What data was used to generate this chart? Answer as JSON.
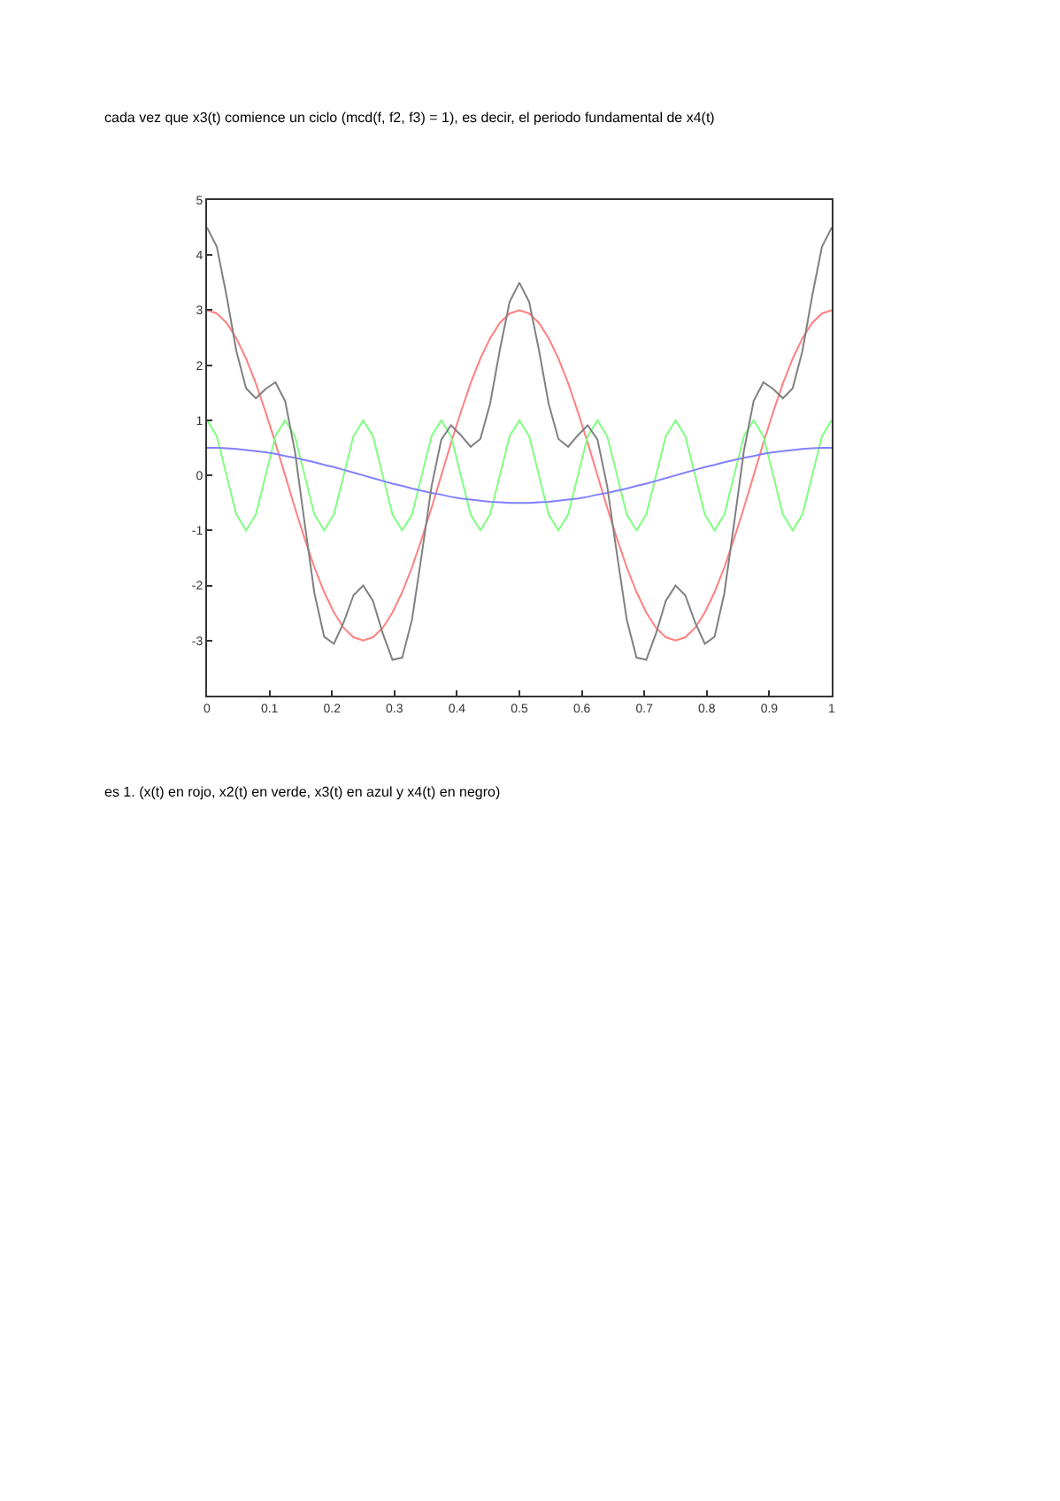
{
  "chart_data": {
    "type": "line",
    "title": "cada vez que x3(t) comience un ciclo (mcd(f, f2, f3) = 1), es decir, el periodo fundamental de x4(t)",
    "annotations": [
      "es 1. (x(t) en rojo, x2(t) en verde, x3(t) en azul y x4(t) en negro)"
    ],
    "x": [
      0,
      0.015625,
      0.03125,
      0.046875,
      0.0625,
      0.078125,
      0.09375,
      0.109375,
      0.125,
      0.140625,
      0.15625,
      0.171875,
      0.1875,
      0.203125,
      0.21875,
      0.234375,
      0.25,
      0.265625,
      0.28125,
      0.296875,
      0.3125,
      0.328125,
      0.34375,
      0.359375,
      0.375,
      0.390625,
      0.40625,
      0.421875,
      0.4375,
      0.453125,
      0.46875,
      0.484375,
      0.5,
      0.515625,
      0.53125,
      0.546875,
      0.5625,
      0.578125,
      0.59375,
      0.609375,
      0.625,
      0.640625,
      0.65625,
      0.671875,
      0.6875,
      0.703125,
      0.71875,
      0.734375,
      0.75,
      0.765625,
      0.78125,
      0.796875,
      0.8125,
      0.828125,
      0.84375,
      0.859375,
      0.875,
      0.890625,
      0.90625,
      0.921875,
      0.9375,
      0.953125,
      0.96875,
      0.984375,
      1
    ],
    "series": [
      {
        "color": "#ff8080",
        "values": [
          3,
          2.94,
          2.77,
          2.49,
          2.12,
          1.67,
          1.15,
          0.59,
          0,
          -0.59,
          -1.15,
          -1.67,
          -2.12,
          -2.49,
          -2.77,
          -2.94,
          -3,
          -2.94,
          -2.77,
          -2.49,
          -2.12,
          -1.67,
          -1.15,
          -0.59,
          0,
          0.59,
          1.15,
          1.67,
          2.12,
          2.49,
          2.77,
          2.94,
          3,
          2.94,
          2.77,
          2.49,
          2.12,
          1.67,
          1.15,
          0.59,
          0,
          -0.59,
          -1.15,
          -1.67,
          -2.12,
          -2.49,
          -2.77,
          -2.94,
          -3,
          -2.94,
          -2.77,
          -2.49,
          -2.12,
          -1.67,
          -1.15,
          -0.59,
          0,
          0.59,
          1.15,
          1.67,
          2.12,
          2.49,
          2.77,
          2.94,
          3
        ]
      },
      {
        "color": "#80ff80",
        "values": [
          1,
          0.71,
          0,
          -0.71,
          -1,
          -0.71,
          0,
          0.71,
          1,
          0.71,
          0,
          -0.71,
          -1,
          -0.71,
          0,
          0.71,
          1,
          0.71,
          0,
          -0.71,
          -1,
          -0.71,
          0,
          0.71,
          1,
          0.71,
          0,
          -0.71,
          -1,
          -0.71,
          0,
          0.71,
          1,
          0.71,
          0,
          -0.71,
          -1,
          -0.71,
          0,
          0.71,
          1,
          0.71,
          0,
          -0.71,
          -1,
          -0.71,
          0,
          0.71,
          1,
          0.71,
          0,
          -0.71,
          -1,
          -0.71,
          0,
          0.71,
          1,
          0.71,
          0,
          -0.71,
          -1,
          -0.71,
          0,
          0.71,
          1
        ]
      },
      {
        "color": "#8080ff",
        "values": [
          0.5,
          0.5,
          0.49,
          0.48,
          0.46,
          0.44,
          0.42,
          0.39,
          0.35,
          0.32,
          0.28,
          0.24,
          0.19,
          0.15,
          0.1,
          0.05,
          0,
          -0.05,
          -0.1,
          -0.15,
          -0.19,
          -0.24,
          -0.28,
          -0.32,
          -0.35,
          -0.39,
          -0.42,
          -0.44,
          -0.46,
          -0.48,
          -0.49,
          -0.5,
          -0.5,
          -0.5,
          -0.49,
          -0.48,
          -0.46,
          -0.44,
          -0.42,
          -0.39,
          -0.35,
          -0.32,
          -0.28,
          -0.24,
          -0.19,
          -0.15,
          -0.1,
          -0.05,
          0,
          0.05,
          0.1,
          0.15,
          0.19,
          0.24,
          0.28,
          0.32,
          0.35,
          0.39,
          0.42,
          0.44,
          0.46,
          0.48,
          0.49,
          0.5,
          0.5
        ]
      },
      {
        "color": "#808080",
        "values": [
          4.5,
          4.15,
          3.26,
          2.26,
          1.58,
          1.4,
          1.57,
          1.69,
          1.35,
          0.44,
          -0.87,
          -2.14,
          -2.93,
          -3.06,
          -2.67,
          -2.18,
          -2,
          -2.28,
          -2.87,
          -3.35,
          -3.31,
          -2.62,
          -1.43,
          -0.2,
          0.65,
          0.91,
          0.73,
          0.52,
          0.66,
          1.3,
          2.28,
          3.15,
          3.5,
          3.15,
          2.28,
          1.3,
          0.66,
          0.52,
          0.73,
          0.91,
          0.65,
          -0.2,
          -1.43,
          -2.62,
          -3.31,
          -3.35,
          -2.87,
          -2.28,
          -2,
          -2.18,
          -2.67,
          -3.06,
          -2.93,
          -2.14,
          -0.87,
          0.44,
          1.35,
          1.69,
          1.57,
          1.4,
          1.58,
          2.26,
          3.26,
          4.15,
          4.5
        ]
      }
    ],
    "xlim": [
      0,
      1
    ],
    "xticks": [
      0,
      0.1,
      0.2,
      0.3,
      0.4,
      0.5,
      0.6,
      0.7,
      0.8,
      0.9,
      1
    ],
    "ylim": [
      -4,
      5
    ],
    "yticks": [
      -3,
      -2,
      -1,
      0,
      1,
      2,
      3,
      4,
      5
    ],
    "line_style": "solid"
  }
}
